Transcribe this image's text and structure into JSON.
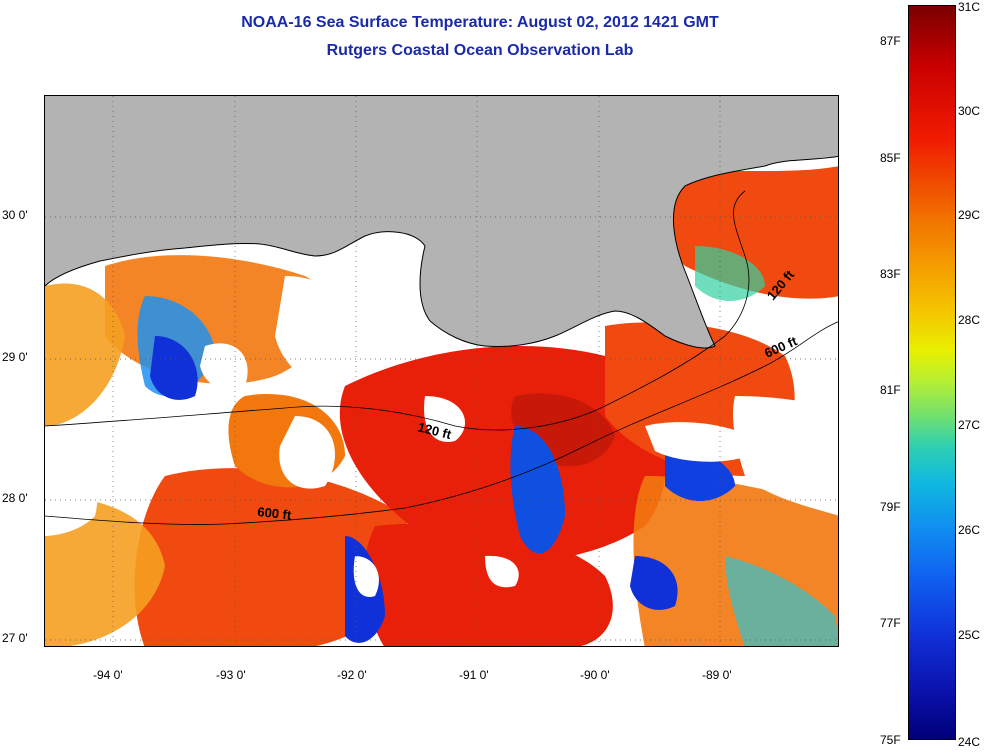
{
  "title": {
    "line1": "NOAA-16 Sea Surface Temperature:  August 02, 2012 1421 GMT",
    "line2": "Rutgers Coastal Ocean Observation Lab"
  },
  "map": {
    "longitude_labels": [
      "-94 0'",
      "-93 0'",
      "-92 0'",
      "-91 0'",
      "-90 0'",
      "-89 0'"
    ],
    "latitude_labels": [
      "30 0'",
      "29 0'",
      "28 0'",
      "27 0'"
    ],
    "isobath_labels": [
      "120 ft",
      "600 ft",
      "120 ft",
      "600 ft"
    ],
    "colors": {
      "land": "#b3b3b3",
      "cloud": "#ffffff",
      "hot": "#e8200a",
      "warm": "#f07a10",
      "cool": "#1040e0"
    }
  },
  "colorbar": {
    "celsius_labels": [
      "31C",
      "30C",
      "29C",
      "28C",
      "27C",
      "26C",
      "25C",
      "24C"
    ],
    "fahrenheit_labels": [
      "87F",
      "85F",
      "83F",
      "81F",
      "79F",
      "77F",
      "75F"
    ]
  }
}
